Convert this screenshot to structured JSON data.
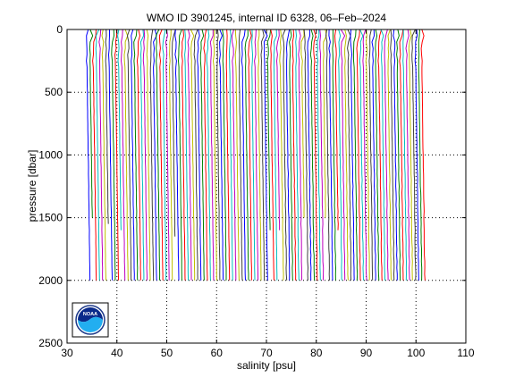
{
  "chart_data": {
    "type": "line",
    "title": "WMO ID 3901245, internal ID 6328, 06–Feb–2024",
    "xlabel": "salinity [psu]",
    "ylabel": "pressure [dbar]",
    "xlim": [
      30,
      110
    ],
    "ylim": [
      0,
      2500
    ],
    "y_reversed": true,
    "xticks": [
      30,
      40,
      50,
      60,
      70,
      80,
      90,
      100,
      110
    ],
    "yticks": [
      0,
      500,
      1000,
      1500,
      2000,
      2500
    ],
    "grid": "dotted",
    "colors": [
      "#0000ff",
      "#008000",
      "#ff0000",
      "#00bfbf",
      "#bf00bf",
      "#bfbf00",
      "#404040"
    ],
    "groups": [
      {
        "x_start": 34.2,
        "x_end": 73.0,
        "count": 61,
        "max_pressure": 2000,
        "surface_salinity": 34.5,
        "deep_salinity": 34.9
      },
      {
        "x_start": 73.0,
        "x_end": 102.0,
        "count": 47,
        "max_pressure": 2000,
        "surface_salinity": 34.5,
        "deep_salinity": 34.9,
        "upper_gap_pressure": 1100
      }
    ]
  },
  "logo": {
    "text": "NOAA"
  }
}
